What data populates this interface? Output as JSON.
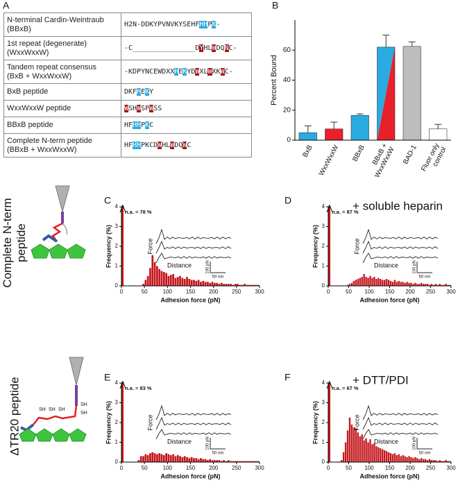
{
  "panel_labels": [
    "A",
    "B",
    "C",
    "D",
    "E",
    "F"
  ],
  "table": {
    "rows": [
      {
        "name": "N-terminal Cardin-Weintraub\n(BBxB)",
        "sequence": [
          "H2N-DDKYPVNVKYSEHF",
          {
            "text": "HH",
            "color": "#29aae1"
          },
          "P",
          {
            "text": "K",
            "color": "#29aae1"
          },
          "-"
        ]
      },
      {
        "name": "1st repeat (degenerate)\n(WxxWxxW)",
        "sequence": [
          "-C_______________D",
          {
            "text": "Y",
            "color": "#a3161c"
          },
          "HL",
          {
            "text": "W",
            "color": "#a3161c"
          },
          "DQ",
          {
            "text": "N",
            "color": "#a3161c"
          },
          "C-"
        ]
      },
      {
        "name": "Tandem repeat consensus\n(BxB + WxxWxxW)",
        "sequence": [
          "-KDPYNCEWDXX",
          {
            "text": "H",
            "color": "#29aae1"
          },
          "E",
          {
            "text": "K",
            "color": "#29aae1"
          },
          "YD",
          {
            "text": "W",
            "color": "#a3161c"
          },
          "XL",
          {
            "text": "W",
            "color": "#a3161c"
          },
          "XK",
          {
            "text": "W",
            "color": "#a3161c"
          },
          "C-"
        ]
      },
      {
        "name": "BxB peptide",
        "sequence": [
          "DKF",
          {
            "text": "H",
            "color": "#29aae1"
          },
          "E",
          {
            "text": "K",
            "color": "#29aae1"
          },
          "Y"
        ]
      },
      {
        "name": "WxxWxxW peptide",
        "sequence": [
          {
            "text": "W",
            "color": "#a3161c"
          },
          "SH",
          {
            "text": "W",
            "color": "#a3161c"
          },
          "SP",
          {
            "text": "W",
            "color": "#a3161c"
          },
          "SS"
        ]
      },
      {
        "name": "BBxB peptide",
        "sequence": [
          "HF",
          {
            "text": "HH",
            "color": "#29aae1"
          },
          "P",
          {
            "text": "K",
            "color": "#29aae1"
          },
          "C"
        ]
      },
      {
        "name": "Complete N-term peptide\n(BBxB + WxxWxxW)",
        "sequence": [
          "HF",
          {
            "text": "HH",
            "color": "#29aae1"
          },
          "PKCD",
          {
            "text": "W",
            "color": "#a3161c"
          },
          "HL",
          {
            "text": "W",
            "color": "#a3161c"
          },
          "DQ",
          {
            "text": "W",
            "color": "#a3161c"
          },
          "C"
        ]
      }
    ]
  },
  "side_labels": [
    "Complete N-term\npeptide",
    "ΔTR20 peptide"
  ],
  "chart_data": [
    {
      "type": "bar",
      "ylabel": "Percent Bound",
      "categories": [
        "BxB",
        "WxxWxxW",
        "BBxB",
        "BBxB +\nWxxWxxW",
        "BAD-1",
        "Fluor only\ncontrol"
      ],
      "values": [
        5,
        7.5,
        16.5,
        62,
        62.5,
        7.5
      ],
      "errors": [
        4.5,
        4.5,
        1,
        8,
        3,
        3
      ],
      "colors": [
        "#29aae1",
        "#e8202a",
        "#29aae1",
        [
          "#29aae1",
          "#e8202a"
        ],
        "#bdbdbd",
        "#ffffff"
      ],
      "ylim": [
        0,
        80
      ],
      "yticks": [
        0,
        20,
        40,
        60
      ]
    },
    {
      "type": "histogram",
      "ylabel": "Frequency (%)",
      "xlabel": "Adhesion force (pN)",
      "color": "#c4161c",
      "na": {
        "value": 78,
        "label": "n.a. = 78 %"
      },
      "bins": [
        0,
        5,
        10,
        15,
        20,
        25,
        30,
        35,
        40,
        45,
        50,
        55,
        60,
        65,
        70,
        75,
        80,
        85,
        90,
        95,
        100,
        105,
        110,
        115,
        120,
        125,
        130,
        135,
        140,
        145,
        150,
        155,
        160,
        165,
        170,
        175,
        180,
        185,
        190,
        195,
        200,
        205,
        210,
        215,
        220,
        225,
        230,
        235,
        240,
        245,
        250,
        255,
        260,
        265,
        270,
        275,
        280,
        285,
        290,
        295,
        300
      ],
      "values": [
        0,
        0,
        0,
        0,
        0,
        0,
        0,
        0,
        0,
        0.1,
        0.3,
        0.5,
        0.9,
        1.55,
        1.2,
        1.0,
        0.85,
        0.75,
        0.7,
        0.65,
        0.5,
        0.55,
        0.6,
        0.4,
        0.45,
        0.5,
        0.4,
        0.35,
        0.45,
        0.35,
        0.3,
        0.3,
        0.25,
        0.3,
        0.2,
        0.25,
        0.2,
        0.2,
        0.15,
        0.2,
        0.15,
        0.15,
        0.1,
        0.15,
        0.1,
        0.1,
        0.1,
        0.1,
        0.05,
        0.1,
        0.1,
        0.05,
        0.05,
        0.1,
        0.05,
        0.05,
        0.05,
        0.05,
        0.05,
        0.05
      ],
      "xlim": [
        0,
        300
      ],
      "ylim": [
        0,
        4
      ],
      "xticks": [
        0,
        50,
        100,
        150,
        200,
        250,
        300
      ],
      "yticks": [
        0,
        1,
        2,
        3,
        4
      ],
      "inset": {
        "ylabel": "Force",
        "xlabel": "Distance",
        "scale_y": "100 pN",
        "scale_x": "50 nm"
      }
    },
    {
      "type": "histogram",
      "ylabel": "Frequency (%)",
      "xlabel": "Adhesion force (pN)",
      "color": "#c4161c",
      "na": {
        "value": 87,
        "label": "n.a. = 87 %"
      },
      "annotation": "+ soluble heparin",
      "bins": [
        0,
        5,
        10,
        15,
        20,
        25,
        30,
        35,
        40,
        45,
        50,
        55,
        60,
        65,
        70,
        75,
        80,
        85,
        90,
        95,
        100,
        105,
        110,
        115,
        120,
        125,
        130,
        135,
        140,
        145,
        150,
        155,
        160,
        165,
        170,
        175,
        180,
        185,
        190,
        195,
        200,
        205,
        210,
        215,
        220,
        225,
        230,
        235,
        240,
        245,
        250,
        255,
        260,
        265,
        270,
        275,
        280,
        285,
        290,
        295,
        300
      ],
      "values": [
        0,
        0,
        0,
        0,
        0,
        0,
        0,
        0,
        0,
        0.05,
        0.1,
        0.15,
        0.25,
        0.3,
        0.35,
        0.4,
        0.45,
        0.6,
        0.45,
        0.4,
        0.5,
        0.4,
        0.45,
        0.35,
        0.4,
        0.35,
        0.3,
        0.3,
        0.35,
        0.3,
        0.25,
        0.2,
        0.3,
        0.2,
        0.25,
        0.2,
        0.2,
        0.15,
        0.2,
        0.15,
        0.15,
        0.1,
        0.15,
        0.1,
        0.1,
        0.15,
        0.1,
        0.1,
        0.1,
        0.05,
        0.1,
        0.05,
        0.1,
        0.05,
        0.1,
        0.05,
        0.05,
        0.1,
        0.05,
        0.05
      ],
      "xlim": [
        0,
        300
      ],
      "ylim": [
        0,
        4
      ],
      "xticks": [
        0,
        50,
        100,
        150,
        200,
        250,
        300
      ],
      "yticks": [
        0,
        1,
        2,
        3,
        4
      ],
      "inset": {
        "ylabel": "Force",
        "xlabel": "Distance",
        "scale_y": "100 pN",
        "scale_x": "50 nm"
      }
    },
    {
      "type": "histogram",
      "ylabel": "Frequency (%)",
      "xlabel": "Adhesion force (pN)",
      "color": "#c4161c",
      "na": {
        "value": 83,
        "label": "n.a. = 83 %"
      },
      "bins": [
        0,
        5,
        10,
        15,
        20,
        25,
        30,
        35,
        40,
        45,
        50,
        55,
        60,
        65,
        70,
        75,
        80,
        85,
        90,
        95,
        100,
        105,
        110,
        115,
        120,
        125,
        130,
        135,
        140,
        145,
        150,
        155,
        160,
        165,
        170,
        175,
        180,
        185,
        190,
        195,
        200,
        205,
        210,
        215,
        220,
        225,
        230,
        235,
        240,
        245,
        250,
        255,
        260,
        265,
        270,
        275,
        280,
        285,
        290,
        295,
        300
      ],
      "values": [
        0,
        0,
        0,
        0,
        0,
        0,
        0,
        0.1,
        0.3,
        0.3,
        0.4,
        0.35,
        0.45,
        0.5,
        0.45,
        0.4,
        0.45,
        0.4,
        0.35,
        0.45,
        0.4,
        0.35,
        0.4,
        0.3,
        0.35,
        0.3,
        0.25,
        0.3,
        0.25,
        0.2,
        0.25,
        0.2,
        0.2,
        0.15,
        0.2,
        0.15,
        0.15,
        0.1,
        0.15,
        0.1,
        0.1,
        0.1,
        0.1,
        0.05,
        0.1,
        0.05,
        0.1,
        0.05,
        0.05,
        0.05,
        0.05,
        0.05,
        0.05,
        0.05,
        0.05,
        0.05,
        0.05,
        0.05,
        0.05,
        0.05
      ],
      "xlim": [
        0,
        300
      ],
      "ylim": [
        0,
        4
      ],
      "xticks": [
        0,
        50,
        100,
        150,
        200,
        250,
        300
      ],
      "yticks": [
        0,
        1,
        2,
        3,
        4
      ],
      "inset": {
        "ylabel": "Force",
        "xlabel": "Distance",
        "scale_y": "100 pN",
        "scale_x": "50 nm"
      }
    },
    {
      "type": "histogram",
      "ylabel": "Frequency (%)",
      "xlabel": "Adhesion force (pN)",
      "color": "#c4161c",
      "na": {
        "value": 67,
        "label": "n.a. = 67 %"
      },
      "annotation": "+ DTT/PDI",
      "bins": [
        0,
        5,
        10,
        15,
        20,
        25,
        30,
        35,
        40,
        45,
        50,
        55,
        60,
        65,
        70,
        75,
        80,
        85,
        90,
        95,
        100,
        105,
        110,
        115,
        120,
        125,
        130,
        135,
        140,
        145,
        150,
        155,
        160,
        165,
        170,
        175,
        180,
        185,
        190,
        195,
        200,
        205,
        210,
        215,
        220,
        225,
        230,
        235,
        240,
        245,
        250,
        255,
        260,
        265,
        270,
        275,
        280,
        285,
        290,
        295,
        300
      ],
      "values": [
        0,
        0,
        0,
        0,
        0,
        0,
        0.1,
        0.5,
        1.0,
        1.6,
        2.25,
        1.9,
        1.75,
        1.7,
        1.5,
        1.3,
        1.4,
        1.1,
        1.2,
        1.0,
        1.15,
        0.9,
        0.95,
        0.8,
        0.75,
        0.7,
        0.65,
        0.6,
        0.55,
        0.5,
        0.45,
        0.4,
        0.45,
        0.35,
        0.4,
        0.3,
        0.35,
        0.3,
        0.25,
        0.3,
        0.25,
        0.2,
        0.25,
        0.2,
        0.15,
        0.2,
        0.15,
        0.15,
        0.1,
        0.15,
        0.1,
        0.1,
        0.1,
        0.05,
        0.1,
        0.05,
        0.05,
        0.1,
        0.05,
        0.05
      ],
      "xlim": [
        0,
        300
      ],
      "ylim": [
        0,
        4
      ],
      "xticks": [
        0,
        50,
        100,
        150,
        200,
        250,
        300
      ],
      "yticks": [
        0,
        1,
        2,
        3,
        4
      ],
      "inset": {
        "ylabel": "Force",
        "xlabel": "Distance",
        "scale_y": "100 pN",
        "scale_x": "50 nm"
      }
    }
  ]
}
